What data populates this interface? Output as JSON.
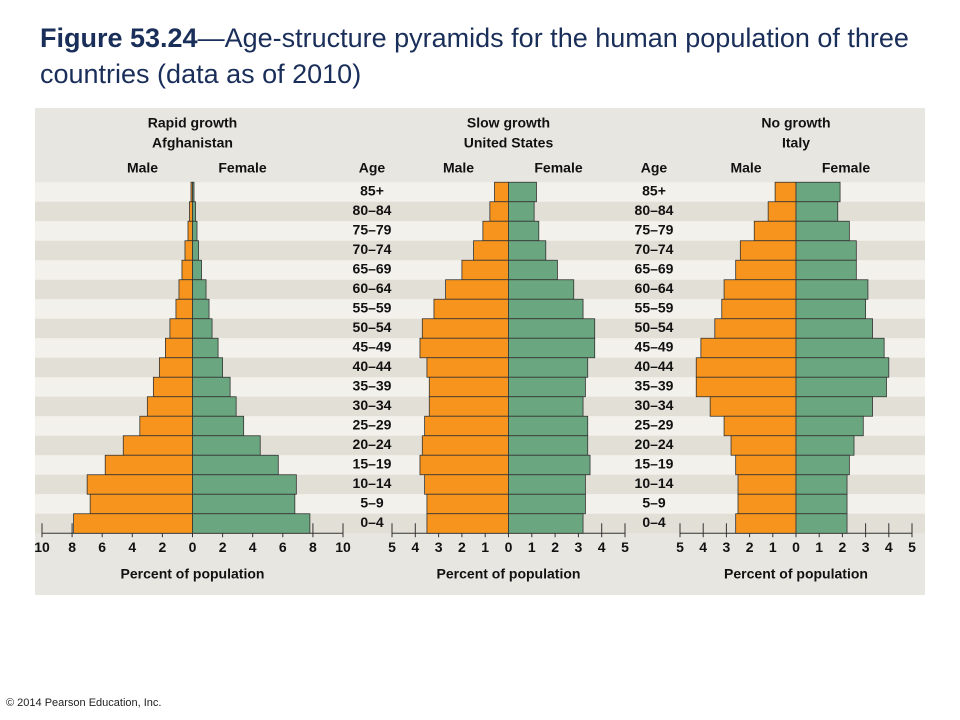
{
  "figure": "Figure 53.24",
  "caption": "—Age-structure pyramids for the human population of three countries (data as of 2010)",
  "credit": "© 2014 Pearson Education, Inc.",
  "chart_data": [
    {
      "type": "pyramid",
      "subtitle": "Rapid growth",
      "title": "Afghanistan",
      "age_label": "Age",
      "categories": [
        "85+",
        "80–84",
        "75–79",
        "70–74",
        "65–69",
        "60–64",
        "55–59",
        "50–54",
        "45–49",
        "40–44",
        "35–39",
        "30–34",
        "25–29",
        "20–24",
        "15–19",
        "10–14",
        "5–9",
        "0–4"
      ],
      "series": [
        {
          "name": "Male",
          "color": "#f7941d",
          "side": "left",
          "values": [
            0.1,
            0.2,
            0.3,
            0.5,
            0.7,
            0.9,
            1.1,
            1.5,
            1.8,
            2.2,
            2.6,
            3.0,
            3.5,
            4.6,
            5.8,
            7.0,
            6.8,
            7.9
          ]
        },
        {
          "name": "Female",
          "color": "#6aa67f",
          "side": "right",
          "values": [
            0.1,
            0.2,
            0.3,
            0.4,
            0.6,
            0.9,
            1.1,
            1.3,
            1.7,
            2.0,
            2.5,
            2.9,
            3.4,
            4.5,
            5.7,
            6.9,
            6.8,
            7.8
          ]
        }
      ],
      "xlim": [
        -10,
        10
      ],
      "xticks": [
        {
          "value": -10,
          "label": "10"
        },
        {
          "value": -8,
          "label": "8"
        },
        {
          "value": -6,
          "label": "6"
        },
        {
          "value": -4,
          "label": "4"
        },
        {
          "value": -2,
          "label": "2"
        },
        0,
        2,
        4,
        6,
        8,
        10
      ],
      "xlabel": "Percent of population"
    },
    {
      "type": "pyramid",
      "subtitle": "Slow growth",
      "title": "United States",
      "age_label": "Age",
      "categories": [
        "85+",
        "80–84",
        "75–79",
        "70–74",
        "65–69",
        "60–64",
        "55–59",
        "50–54",
        "45–49",
        "40–44",
        "35–39",
        "30–34",
        "25–29",
        "20–24",
        "15–19",
        "10–14",
        "5–9",
        "0–4"
      ],
      "series": [
        {
          "name": "Male",
          "color": "#f7941d",
          "side": "left",
          "values": [
            0.6,
            0.8,
            1.1,
            1.5,
            2.0,
            2.7,
            3.2,
            3.7,
            3.8,
            3.5,
            3.4,
            3.4,
            3.6,
            3.7,
            3.8,
            3.6,
            3.5,
            3.5
          ]
        },
        {
          "name": "Female",
          "color": "#6aa67f",
          "side": "right",
          "values": [
            1.2,
            1.1,
            1.3,
            1.6,
            2.1,
            2.8,
            3.2,
            3.7,
            3.7,
            3.4,
            3.3,
            3.2,
            3.4,
            3.4,
            3.5,
            3.3,
            3.3,
            3.2
          ]
        }
      ],
      "xlim": [
        -5,
        5
      ],
      "xticks": [
        {
          "value": -5,
          "label": "5"
        },
        {
          "value": -4,
          "label": "4"
        },
        {
          "value": -3,
          "label": "3"
        },
        {
          "value": -2,
          "label": "2"
        },
        {
          "value": -1,
          "label": "1"
        },
        0,
        1,
        2,
        3,
        4,
        5
      ],
      "xlabel": "Percent of population"
    },
    {
      "type": "pyramid",
      "subtitle": "No growth",
      "title": "Italy",
      "series": [
        {
          "name": "Male",
          "color": "#f7941d",
          "side": "left",
          "values": [
            0.9,
            1.2,
            1.8,
            2.4,
            2.6,
            3.1,
            3.2,
            3.5,
            4.1,
            4.3,
            4.3,
            3.7,
            3.1,
            2.8,
            2.6,
            2.5,
            2.5,
            2.6
          ]
        },
        {
          "name": "Female",
          "color": "#6aa67f",
          "side": "right",
          "values": [
            1.9,
            1.8,
            2.3,
            2.6,
            2.6,
            3.1,
            3.0,
            3.3,
            3.8,
            4.0,
            3.9,
            3.3,
            2.9,
            2.5,
            2.3,
            2.2,
            2.2,
            2.2
          ]
        }
      ],
      "xlim": [
        -5,
        5
      ],
      "xticks": [
        {
          "value": -5,
          "label": "5"
        },
        {
          "value": -4,
          "label": "4"
        },
        {
          "value": -3,
          "label": "3"
        },
        {
          "value": -2,
          "label": "2"
        },
        {
          "value": -1,
          "label": "1"
        },
        0,
        1,
        2,
        3,
        4,
        5
      ],
      "xlabel": "Percent of population"
    }
  ]
}
